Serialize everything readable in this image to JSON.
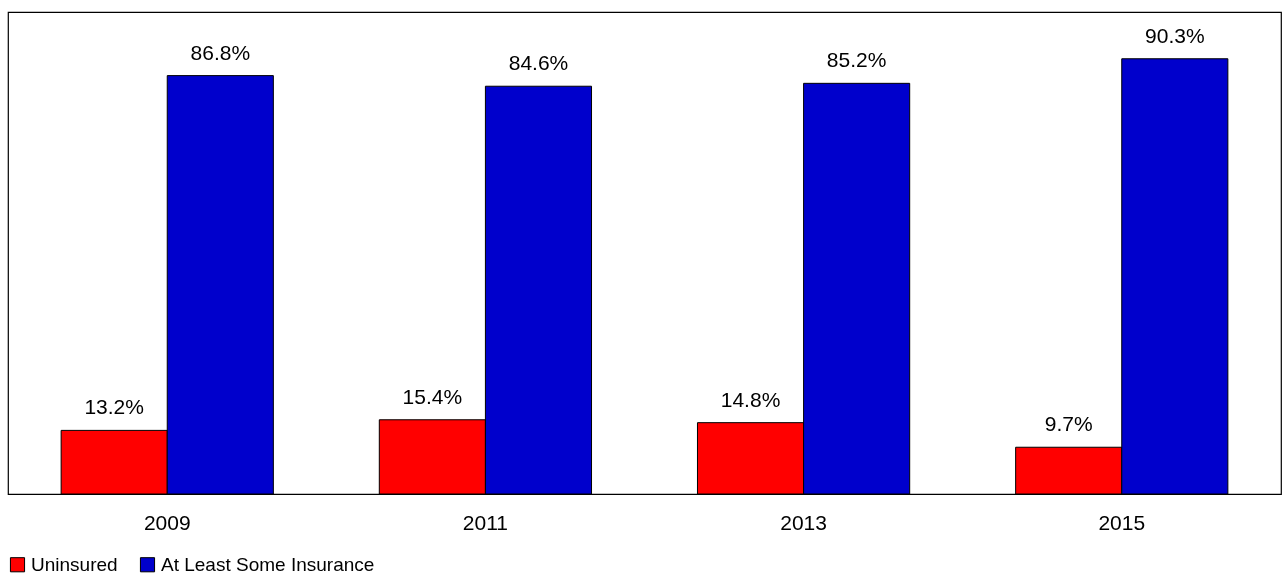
{
  "chart_data": {
    "type": "bar",
    "categories": [
      "2009",
      "2011",
      "2013",
      "2015"
    ],
    "series": [
      {
        "name": "Uninsured",
        "color": "#ff0000",
        "values": [
          13.2,
          15.4,
          14.8,
          9.7
        ],
        "value_labels": [
          "13.2%",
          "15.4%",
          "14.8%",
          "9.7%"
        ]
      },
      {
        "name": "At Least Some Insurance",
        "color": "#0000cc",
        "values": [
          86.8,
          84.6,
          85.2,
          90.3
        ],
        "value_labels": [
          "86.8%",
          "84.6%",
          "85.2%",
          "90.3%"
        ]
      }
    ],
    "tick_labels": "x",
    "legend": "bottom"
  }
}
